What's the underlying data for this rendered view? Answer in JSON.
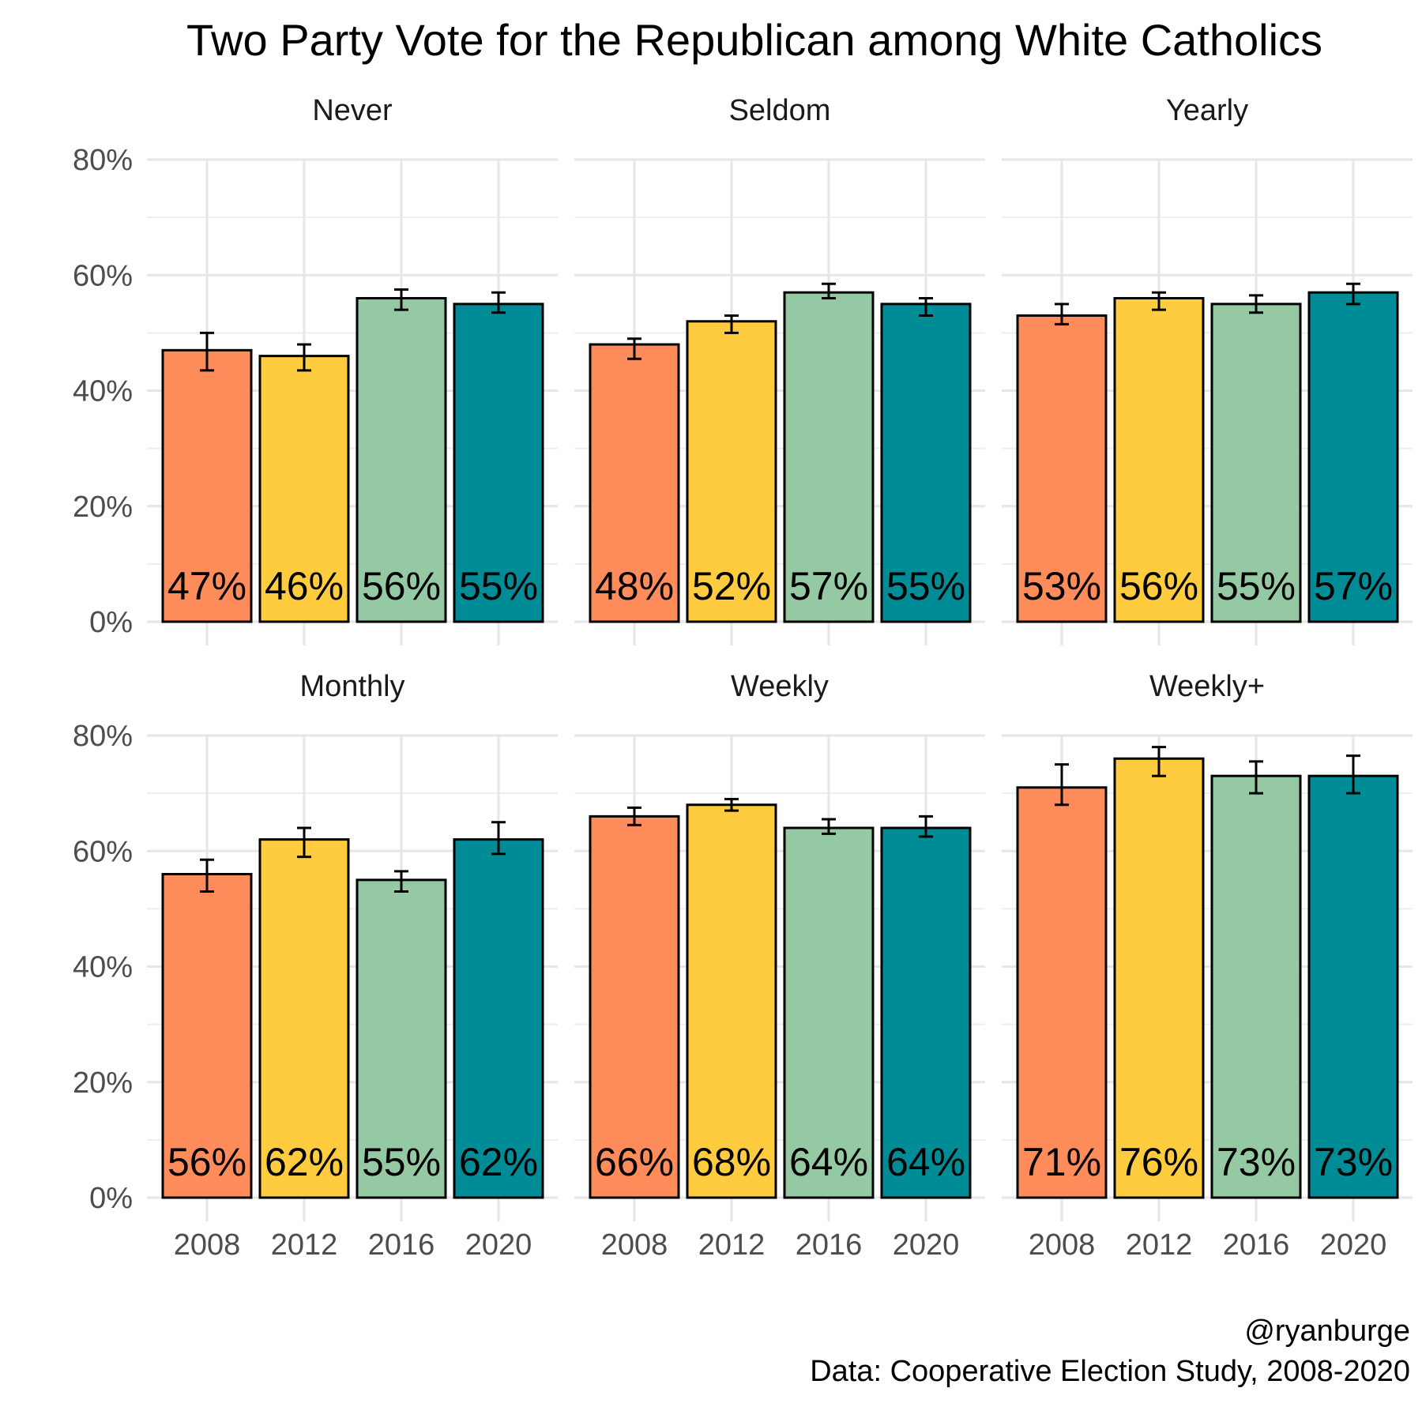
{
  "chart_data": {
    "type": "bar",
    "title": "Two Party Vote for the Republican among White Catholics",
    "xlabel": "",
    "ylabel": "",
    "ylim": [
      0,
      0.8
    ],
    "y_ticks": [
      "0%",
      "20%",
      "40%",
      "60%",
      "80%"
    ],
    "y_tick_values": [
      0,
      0.2,
      0.4,
      0.6,
      0.8
    ],
    "categories": [
      "2008",
      "2012",
      "2016",
      "2020"
    ],
    "colors": [
      "#FF8C5A",
      "#FFCB3F",
      "#95C9A4",
      "#008C96"
    ],
    "grid": true,
    "legend": "none",
    "panels": [
      {
        "name": "Never",
        "values": [
          0.47,
          0.46,
          0.56,
          0.55
        ],
        "labels": [
          "47%",
          "46%",
          "56%",
          "55%"
        ],
        "err_low": [
          0.435,
          0.435,
          0.54,
          0.535
        ],
        "err_high": [
          0.5,
          0.48,
          0.575,
          0.57
        ]
      },
      {
        "name": "Seldom",
        "values": [
          0.48,
          0.52,
          0.57,
          0.55
        ],
        "labels": [
          "48%",
          "52%",
          "57%",
          "55%"
        ],
        "err_low": [
          0.455,
          0.5,
          0.56,
          0.53
        ],
        "err_high": [
          0.49,
          0.53,
          0.585,
          0.56
        ]
      },
      {
        "name": "Yearly",
        "values": [
          0.53,
          0.56,
          0.55,
          0.57
        ],
        "labels": [
          "53%",
          "56%",
          "55%",
          "57%"
        ],
        "err_low": [
          0.515,
          0.54,
          0.535,
          0.55
        ],
        "err_high": [
          0.55,
          0.57,
          0.565,
          0.585
        ]
      },
      {
        "name": "Monthly",
        "values": [
          0.56,
          0.62,
          0.55,
          0.62
        ],
        "labels": [
          "56%",
          "62%",
          "55%",
          "62%"
        ],
        "err_low": [
          0.53,
          0.59,
          0.53,
          0.595
        ],
        "err_high": [
          0.585,
          0.64,
          0.565,
          0.65
        ]
      },
      {
        "name": "Weekly",
        "values": [
          0.66,
          0.68,
          0.64,
          0.64
        ],
        "labels": [
          "66%",
          "68%",
          "64%",
          "64%"
        ],
        "err_low": [
          0.645,
          0.67,
          0.63,
          0.625
        ],
        "err_high": [
          0.675,
          0.69,
          0.655,
          0.66
        ]
      },
      {
        "name": "Weekly+",
        "values": [
          0.71,
          0.76,
          0.73,
          0.73
        ],
        "labels": [
          "71%",
          "76%",
          "73%",
          "73%"
        ],
        "err_low": [
          0.68,
          0.73,
          0.7,
          0.7
        ],
        "err_high": [
          0.75,
          0.78,
          0.755,
          0.765
        ]
      }
    ]
  },
  "caption": {
    "line1": "@ryanburge",
    "line2": "Data: Cooperative Election Study, 2008-2020"
  }
}
